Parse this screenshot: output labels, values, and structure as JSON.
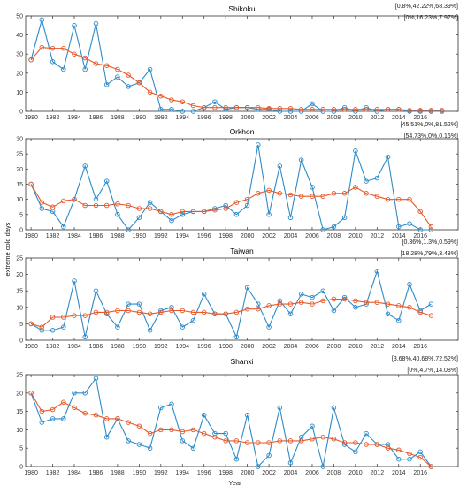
{
  "figure": {
    "ylabel": "extreme cold days",
    "xlabel": "Year",
    "colors": {
      "blue": "#2e8bc9",
      "orange": "#e5582a",
      "axis": "#333333",
      "grid": "#dddddd"
    }
  },
  "chart_data": [
    {
      "type": "line",
      "title": "Shikoku",
      "annotations": [
        "[0.8%,42.22%,68.39%]",
        "[0%,16.23%,7.97%]"
      ],
      "xlim": [
        1979.5,
        2019.5
      ],
      "ylim": [
        0,
        50
      ],
      "yticks": [
        0,
        10,
        20,
        30,
        40,
        50
      ],
      "xticks": [
        1980,
        1982,
        1984,
        1986,
        1988,
        1990,
        1992,
        1994,
        1996,
        1998,
        2000,
        2002,
        2004,
        2006,
        2008,
        2010,
        2012,
        2014,
        2016
      ],
      "x": [
        1980,
        1981,
        1982,
        1983,
        1984,
        1985,
        1986,
        1987,
        1988,
        1989,
        1990,
        1991,
        1992,
        1993,
        1994,
        1995,
        1996,
        1997,
        1998,
        1999,
        2000,
        2001,
        2002,
        2003,
        2004,
        2005,
        2006,
        2007,
        2008,
        2009,
        2010,
        2011,
        2012,
        2013,
        2014,
        2015,
        2016,
        2017,
        2018
      ],
      "series": [
        {
          "color": "#2e8bc9",
          "values": [
            27,
            48,
            26,
            22,
            45,
            22,
            46,
            14,
            18,
            13,
            15,
            22,
            1,
            1,
            0,
            0,
            2,
            5,
            1,
            2,
            2,
            1,
            1,
            0,
            0,
            0,
            4,
            0,
            0,
            2,
            0,
            2,
            0,
            1,
            1,
            0,
            0,
            0,
            0
          ]
        },
        {
          "color": "#e5582a",
          "values": [
            27,
            33.5,
            33,
            33,
            30,
            28,
            25,
            24,
            22,
            19,
            15,
            10,
            8,
            6,
            5,
            3,
            2,
            2,
            2,
            2,
            2,
            2,
            1.5,
            1.5,
            1.5,
            1,
            1,
            1,
            1,
            1,
            1,
            1,
            1,
            1,
            1,
            0.5,
            0.5,
            0.5,
            0.5
          ]
        }
      ]
    },
    {
      "type": "line",
      "title": "Orkhon",
      "annotations": [
        "[45.51%,0%,81.52%]",
        "[54.73%,0%,0.16%]"
      ],
      "xlim": [
        1979.5,
        2019.5
      ],
      "ylim": [
        0,
        30
      ],
      "yticks": [
        0,
        5,
        10,
        15,
        20,
        25,
        30
      ],
      "xticks": [
        1980,
        1982,
        1984,
        1986,
        1988,
        1990,
        1992,
        1994,
        1996,
        1998,
        2000,
        2002,
        2004,
        2006,
        2008,
        2010,
        2012,
        2014,
        2016
      ],
      "x": [
        1980,
        1981,
        1982,
        1983,
        1984,
        1985,
        1986,
        1987,
        1988,
        1989,
        1990,
        1991,
        1992,
        1993,
        1994,
        1995,
        1996,
        1997,
        1998,
        1999,
        2000,
        2001,
        2002,
        2003,
        2004,
        2005,
        2006,
        2007,
        2008,
        2009,
        2010,
        2011,
        2012,
        2013,
        2014,
        2015,
        2016,
        2017
      ],
      "series": [
        {
          "color": "#2e8bc9",
          "values": [
            15,
            7,
            6,
            1,
            10,
            21,
            10,
            16,
            5,
            0,
            4,
            9,
            6,
            3,
            5,
            6,
            6,
            7,
            8,
            5,
            8,
            28,
            5,
            21,
            4,
            23,
            14,
            0,
            1,
            4,
            26,
            16,
            17,
            24,
            1,
            2,
            0,
            0
          ]
        },
        {
          "color": "#e5582a",
          "values": [
            15,
            9,
            7.5,
            9.5,
            10,
            8,
            8,
            8,
            8.5,
            8,
            7,
            7,
            6,
            5,
            6,
            6,
            6,
            6.5,
            7,
            9,
            10,
            12,
            13,
            12,
            11.5,
            11,
            11,
            11,
            12,
            12,
            14,
            12,
            11,
            10,
            10,
            10,
            6,
            1
          ]
        }
      ]
    },
    {
      "type": "line",
      "title": "Taiwan",
      "annotations": [
        "[0.36%,1.3%,0.59%]",
        "[18.28%,79%,3.48%]"
      ],
      "xlim": [
        1979.5,
        2019.5
      ],
      "ylim": [
        0,
        25
      ],
      "yticks": [
        0,
        5,
        10,
        15,
        20,
        25
      ],
      "xticks": [
        1980,
        1982,
        1984,
        1986,
        1988,
        1990,
        1992,
        1994,
        1996,
        1998,
        2000,
        2002,
        2004,
        2006,
        2008,
        2010,
        2012,
        2014,
        2016
      ],
      "x": [
        1980,
        1981,
        1982,
        1983,
        1984,
        1985,
        1986,
        1987,
        1988,
        1989,
        1990,
        1991,
        1992,
        1993,
        1994,
        1995,
        1996,
        1997,
        1998,
        1999,
        2000,
        2001,
        2002,
        2003,
        2004,
        2005,
        2006,
        2007,
        2008,
        2009,
        2010,
        2011,
        2012,
        2013,
        2014,
        2015,
        2016,
        2017
      ],
      "series": [
        {
          "color": "#2e8bc9",
          "values": [
            5,
            3,
            3,
            4,
            18,
            1,
            15,
            8,
            4,
            11,
            11,
            3,
            9,
            10,
            4,
            6,
            14,
            8,
            8,
            1,
            16,
            11,
            4,
            12,
            8,
            14,
            13,
            15,
            9,
            13,
            10,
            11,
            21,
            8,
            6,
            17,
            9,
            11
          ]
        },
        {
          "color": "#e5582a",
          "values": [
            5,
            4,
            7,
            7,
            7.5,
            7.5,
            8.5,
            8.5,
            9,
            9,
            8.5,
            8,
            8.5,
            9,
            9,
            8.5,
            8.5,
            8,
            8,
            8.5,
            9.5,
            9.5,
            10.5,
            11,
            11,
            11.5,
            11,
            12,
            12.5,
            12.5,
            12,
            11.5,
            11.5,
            11,
            10.5,
            10,
            8.5,
            7.5
          ]
        }
      ]
    },
    {
      "type": "line",
      "title": "Shanxi",
      "annotations": [
        "[3.68%,40.68%,72.52%]",
        "[0%,4.7%,14.08%]"
      ],
      "xlim": [
        1979.5,
        2019.5
      ],
      "ylim": [
        0,
        25
      ],
      "yticks": [
        0,
        5,
        10,
        15,
        20,
        25
      ],
      "xticks": [
        1980,
        1982,
        1984,
        1986,
        1988,
        1990,
        1992,
        1994,
        1996,
        1998,
        2000,
        2002,
        2004,
        2006,
        2008,
        2010,
        2012,
        2014,
        2016
      ],
      "x": [
        1980,
        1981,
        1982,
        1983,
        1984,
        1985,
        1986,
        1987,
        1988,
        1989,
        1990,
        1991,
        1992,
        1993,
        1994,
        1995,
        1996,
        1997,
        1998,
        1999,
        2000,
        2001,
        2002,
        2003,
        2004,
        2005,
        2006,
        2007,
        2008,
        2009,
        2010,
        2011,
        2012,
        2013,
        2014,
        2015,
        2016,
        2017
      ],
      "series": [
        {
          "color": "#2e8bc9",
          "values": [
            20,
            12,
            13,
            13,
            20,
            20,
            24,
            8,
            13,
            7,
            6,
            5,
            16,
            17,
            7,
            5,
            14,
            9,
            9,
            2,
            14,
            0,
            3,
            16,
            1,
            8,
            11,
            0,
            16,
            6,
            4,
            9,
            6,
            6,
            2,
            2,
            4,
            0
          ]
        },
        {
          "color": "#e5582a",
          "values": [
            20,
            15,
            15.5,
            17.5,
            16,
            14.5,
            14,
            13,
            13,
            12,
            11,
            9,
            10,
            10,
            9.5,
            10,
            9,
            8,
            7,
            7,
            6.5,
            6.5,
            6.5,
            7,
            7,
            7,
            7.5,
            8,
            7.5,
            6.5,
            6.5,
            6,
            6,
            5,
            4.5,
            3.5,
            2.5,
            0
          ]
        }
      ]
    }
  ]
}
